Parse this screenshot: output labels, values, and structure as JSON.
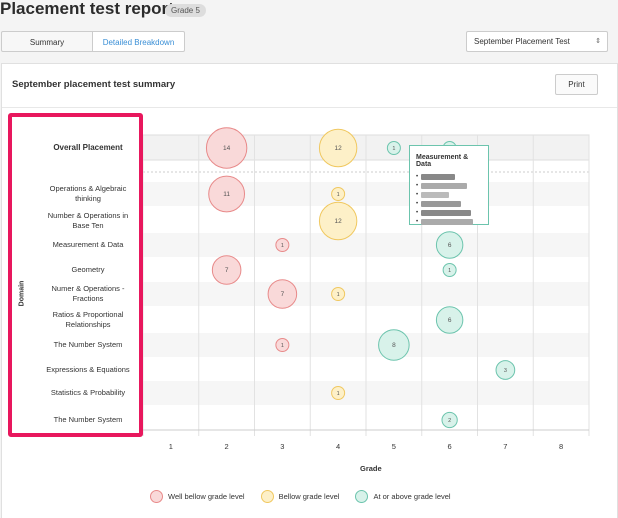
{
  "header": {
    "title": "Placement test report",
    "grade_badge": "Grade 5"
  },
  "tabs": [
    {
      "label": "Summary",
      "active": true
    },
    {
      "label": "Detailed Breakdown",
      "active": false
    }
  ],
  "test_select": {
    "value": "September Placement Test"
  },
  "card": {
    "title": "September placement test summary",
    "print_label": "Print"
  },
  "chart_data": {
    "type": "scatter",
    "xlabel": "Grade",
    "ylabel": "Domain",
    "x_ticks": [
      "1",
      "2",
      "3",
      "4",
      "5",
      "6",
      "7",
      "8"
    ],
    "rows": [
      "Overall Placement",
      "Operations & Algebraic thinking",
      "Number & Operations in Base Ten",
      "Measurement & Data",
      "Geometry",
      "Numer & Operations - Fractions",
      "Ratios & Proportional Relationships",
      "The Number System",
      "Expressions & Equations",
      "Statistics & Probability",
      "The Number System"
    ],
    "series": [
      {
        "name": "Well bellow grade level",
        "color": "#e88a8a",
        "fill": "#f9d9d9",
        "points": [
          {
            "row": 0,
            "grade": 2,
            "value": 14
          },
          {
            "row": 1,
            "grade": 2,
            "value": 11
          },
          {
            "row": 3,
            "grade": 3,
            "value": 1
          },
          {
            "row": 4,
            "grade": 2,
            "value": 7
          },
          {
            "row": 5,
            "grade": 3,
            "value": 7
          },
          {
            "row": 7,
            "grade": 3,
            "value": 1
          }
        ]
      },
      {
        "name": "Bellow grade level",
        "color": "#f0c860",
        "fill": "#fdf0c8",
        "points": [
          {
            "row": 0,
            "grade": 4,
            "value": 12
          },
          {
            "row": 1,
            "grade": 4,
            "value": 1
          },
          {
            "row": 2,
            "grade": 4,
            "value": 12
          },
          {
            "row": 5,
            "grade": 4,
            "value": 1
          },
          {
            "row": 9,
            "grade": 4,
            "value": 1
          }
        ]
      },
      {
        "name": "At or above grade level",
        "color": "#6cc4ad",
        "fill": "#d8f2ea",
        "points": [
          {
            "row": 0,
            "grade": 5,
            "value": 1
          },
          {
            "row": 0,
            "grade": 6,
            "value": 1
          },
          {
            "row": 3,
            "grade": 6,
            "value": 6
          },
          {
            "row": 4,
            "grade": 6,
            "value": 1
          },
          {
            "row": 6,
            "grade": 6,
            "value": 6
          },
          {
            "row": 7,
            "grade": 5,
            "value": 8
          },
          {
            "row": 8,
            "grade": 7,
            "value": 3
          },
          {
            "row": 10,
            "grade": 6,
            "value": 2
          }
        ]
      }
    ],
    "tooltip_title": "Measurement & Data",
    "legend_placement": "bottom"
  }
}
